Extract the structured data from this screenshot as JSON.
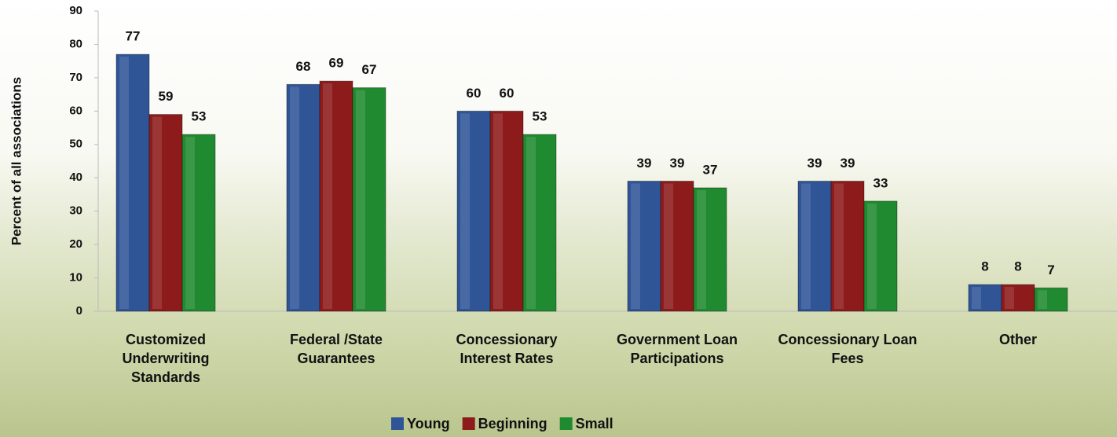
{
  "chart_data": {
    "type": "bar",
    "y_label": "Percent of all associations",
    "categories": [
      "Customized Underwriting Standards",
      "Federal /State Guarantees",
      "Concessionary Interest Rates",
      "Government Loan Participations",
      "Concessionary Loan Fees",
      "Other"
    ],
    "series": [
      {
        "name": "Young",
        "color": "#2f5597",
        "values": [
          77,
          68,
          60,
          39,
          39,
          8
        ]
      },
      {
        "name": "Beginning",
        "color": "#8e1b1b",
        "values": [
          59,
          69,
          60,
          39,
          39,
          8
        ]
      },
      {
        "name": "Small",
        "color": "#1f8a2f",
        "values": [
          53,
          67,
          53,
          37,
          33,
          7
        ]
      }
    ],
    "ylim": [
      0,
      90
    ],
    "yticks": [
      0,
      10,
      20,
      30,
      40,
      50,
      60,
      70,
      80,
      90
    ],
    "legend": "bottom"
  }
}
